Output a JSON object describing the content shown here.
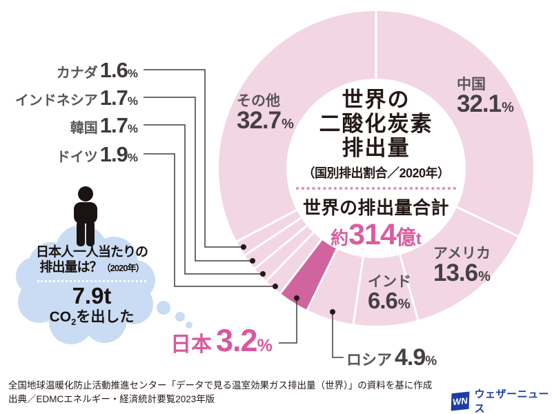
{
  "chart_data": {
    "type": "pie",
    "title_lines": [
      "世界の",
      "二酸化炭素",
      "排出量"
    ],
    "subtitle": "（国別排出割合／2020年）",
    "total_label": "世界の排出量合計",
    "total_prefix": "約",
    "total_number": "314",
    "total_unit_big": "億",
    "total_unit_small": "t",
    "unit": "%",
    "start_angle_deg": 0,
    "direction": "clockwise",
    "legend_position": "around",
    "slices": [
      {
        "label": "中国",
        "value": 32.1
      },
      {
        "label": "アメリカ",
        "value": 13.6
      },
      {
        "label": "インド",
        "value": 6.6
      },
      {
        "label": "ロシア",
        "value": 4.9
      },
      {
        "label": "日本",
        "value": 3.2,
        "emphasis": true
      },
      {
        "label": "ドイツ",
        "value": 1.9
      },
      {
        "label": "韓国",
        "value": 1.7
      },
      {
        "label": "インドネシア",
        "value": 1.7
      },
      {
        "label": "カナダ",
        "value": 1.6
      },
      {
        "label": "その他",
        "value": 32.7
      }
    ],
    "colors": {
      "slice": "#F2D6E3",
      "highlight": "#D0649E",
      "gap": "#FFFFFF",
      "emphasis_text": "#D9589D",
      "label_name": "#5A5456",
      "label_value": "#454042",
      "center_pink": "#DB5C9E",
      "ink": "#231815",
      "leader_line": "#3E3A39",
      "bubble_blue": "#C9DCF4"
    }
  },
  "bubble": {
    "question_line1": "日本人一人当たりの",
    "question_line2": "排出量は？",
    "question_year": "（2020年）",
    "answer_value": "7.9t",
    "answer_prefix": "CO",
    "answer_sub": "2",
    "answer_suffix": "を出した"
  },
  "footer": {
    "source_line1": "全国地球温暖化防止活動推進センター「データで見る温室効果ガス排出量（世界）」の資料を基に作成",
    "source_line2": "出典／EDMCエネルギー・経済統計要覧2023年版",
    "logo_mark": "WN",
    "logo_text": "ウェザーニュース"
  }
}
